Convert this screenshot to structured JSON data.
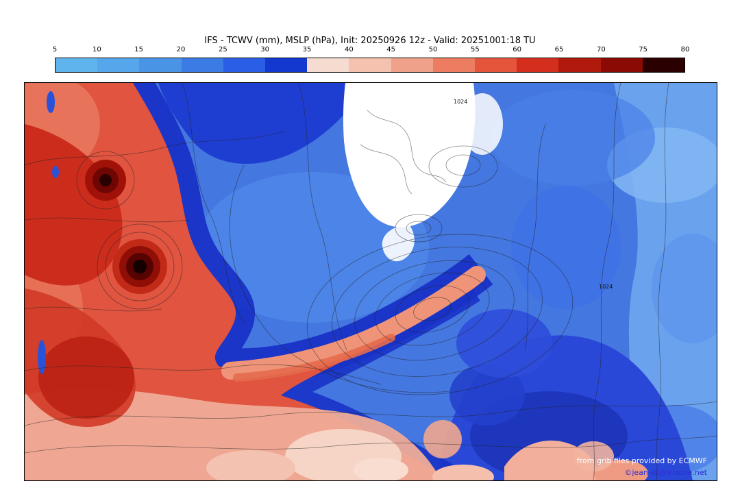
{
  "title": "IFS - TCWV (mm), MSLP (hPa), Init: 20250926 12z - Valid: 20251001:18 TU",
  "colorbar": {
    "ticks": [
      "5",
      "10",
      "15",
      "20",
      "25",
      "30",
      "35",
      "40",
      "45",
      "50",
      "55",
      "60",
      "65",
      "70",
      "75",
      "80"
    ],
    "segment_colors": [
      "#5fb4ee",
      "#55a6ea",
      "#4a94e6",
      "#3a7ce4",
      "#2a5ee6",
      "#1238d0",
      "#f6dcd0",
      "#f4c2ae",
      "#f0a189",
      "#ec7d60",
      "#e4553c",
      "#d42f1e",
      "#b2190d",
      "#8c0a04",
      "#2a0100"
    ]
  },
  "map": {
    "contour_label": "1024",
    "attribution_line1": "from grib files provided by ECMWF",
    "attribution_line2": "©jean-sb@irizone.net",
    "attribution_color": "#2a2ad0",
    "field_colors": {
      "moist_red": "#e05440",
      "dry_blue": "#4477e0",
      "deep_blue": "#1832c6",
      "pale_pink": "#f7d5c6",
      "ice_white": "#ffffff"
    }
  }
}
